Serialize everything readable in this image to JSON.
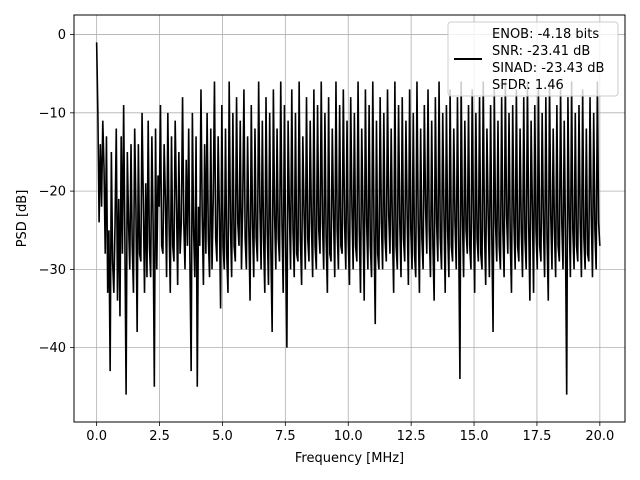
{
  "chart_data": {
    "type": "line",
    "title": "",
    "xlabel": "Frequency [MHz]",
    "ylabel": "PSD [dB]",
    "xlim": [
      -0.9,
      21.0
    ],
    "ylim": [
      -49.5,
      2.5
    ],
    "xticks": [
      0.0,
      2.5,
      5.0,
      7.5,
      10.0,
      12.5,
      15.0,
      17.5,
      20.0
    ],
    "xtick_labels": [
      "0.0",
      "2.5",
      "5.0",
      "7.5",
      "10.0",
      "12.5",
      "15.0",
      "17.5",
      "20.0"
    ],
    "yticks": [
      0,
      -10,
      -20,
      -30,
      -40
    ],
    "ytick_labels": [
      "0",
      "−10",
      "−20",
      "−30",
      "−40"
    ],
    "grid": true,
    "legend_position": "top-right",
    "legend": [
      "ENOB: -4.18 bits",
      "SNR: -23.41 dB",
      "SINAD: -23.43 dB",
      "SFDR: 1.46"
    ],
    "series": [
      {
        "color": "#000000",
        "x_start": 0.0,
        "x_end": 20.0,
        "values": [
          -1,
          -10,
          -24,
          -14,
          -22,
          -11,
          -17,
          -28,
          -13,
          -33,
          -25,
          -43,
          -15,
          -29,
          -33,
          -24,
          -12,
          -34,
          -21,
          -36,
          -13,
          -28,
          -9,
          -26,
          -46,
          -15,
          -24,
          -30,
          -14,
          -27,
          -33,
          -12,
          -22,
          -38,
          -14,
          -28,
          -29,
          -10,
          -21,
          -33,
          -19,
          -31,
          -11,
          -27,
          -31,
          -13,
          -24,
          -45,
          -12,
          -30,
          -18,
          -22,
          -9,
          -27,
          -28,
          -14,
          -21,
          -31,
          -10,
          -24,
          -33,
          -13,
          -27,
          -29,
          -11,
          -21,
          -32,
          -15,
          -28,
          -24,
          -8,
          -24,
          -30,
          -16,
          -27,
          -12,
          -29,
          -43,
          -10,
          -25,
          -31,
          -13,
          -45,
          -22,
          -27,
          -7,
          -23,
          -32,
          -14,
          -28,
          -10,
          -26,
          -31,
          -12,
          -30,
          -21,
          -6,
          -26,
          -29,
          -13,
          -23,
          -35,
          -9,
          -27,
          -30,
          -12,
          -28,
          -33,
          -6,
          -24,
          -31,
          -10,
          -27,
          -29,
          -8,
          -24,
          -27,
          -11,
          -30,
          -22,
          -7,
          -26,
          -30,
          -13,
          -25,
          -34,
          -9,
          -24,
          -31,
          -12,
          -26,
          -29,
          -6,
          -22,
          -30,
          -11,
          -26,
          -33,
          -8,
          -25,
          -32,
          -10,
          -28,
          -38,
          -7,
          -23,
          -30,
          -12,
          -26,
          -29,
          -6,
          -24,
          -33,
          -9,
          -27,
          -40,
          -11,
          -22,
          -30,
          -7,
          -25,
          -31,
          -10,
          -28,
          -29,
          -6,
          -26,
          -32,
          -13,
          -23,
          -30,
          -8,
          -26,
          -29,
          -11,
          -24,
          -31,
          -7,
          -27,
          -30,
          -9,
          -25,
          -28,
          -6,
          -24,
          -30,
          -10,
          -26,
          -33,
          -8,
          -28,
          -29,
          -12,
          -23,
          -31,
          -6,
          -25,
          -30,
          -9,
          -27,
          -28,
          -7,
          -24,
          -30,
          -11,
          -26,
          -32,
          -8,
          -22,
          -30,
          -10,
          -27,
          -29,
          -6,
          -25,
          -33,
          -12,
          -23,
          -34,
          -7,
          -24,
          -30,
          -9,
          -27,
          -31,
          -6,
          -25,
          -37,
          -11,
          -28,
          -30,
          -8,
          -24,
          -30,
          -10,
          -26,
          -29,
          -7,
          -23,
          -28,
          -12,
          -25,
          -33,
          -6,
          -27,
          -30,
          -9,
          -24,
          -31,
          -8,
          -26,
          -29,
          -11,
          -23,
          -32,
          -7,
          -25,
          -30,
          -10,
          -28,
          -31,
          -6,
          -24,
          -33,
          -12,
          -26,
          -30,
          -9,
          -22,
          -28,
          -7,
          -25,
          -31,
          -11,
          -27,
          -34,
          -8,
          -24,
          -29,
          -6,
          -26,
          -30,
          -10,
          -23,
          -33,
          -9,
          -25,
          -31,
          -7,
          -27,
          -29,
          -12,
          -24,
          -30,
          -8,
          -26,
          -44,
          -6,
          -23,
          -31,
          -11,
          -25,
          -28,
          -9,
          -27,
          -30,
          -7,
          -24,
          -33,
          -10,
          -26,
          -29,
          -8,
          -28,
          -30,
          -6,
          -25,
          -32,
          -12,
          -23,
          -31,
          -9,
          -26,
          -38,
          -7,
          -24,
          -29,
          -11,
          -27,
          -30,
          -8,
          -25,
          -31,
          -6,
          -23,
          -28,
          -10,
          -26,
          -33,
          -9,
          -24,
          -30,
          -7,
          -27,
          -29,
          -12,
          -25,
          -31,
          -8,
          -26,
          -30,
          -6,
          -24,
          -34,
          -11,
          -22,
          -33,
          -9,
          -25,
          -30,
          -7,
          -27,
          -29,
          -10,
          -24,
          -31,
          -8,
          -26,
          -34,
          -6,
          -23,
          -30,
          -12,
          -25,
          -31,
          -9,
          -27,
          -29,
          -7,
          -24,
          -30,
          -11,
          -26,
          -46,
          -8,
          -23,
          -31,
          -6,
          -25,
          -30,
          -10,
          -27,
          -29,
          -9,
          -24,
          -31,
          -7,
          -26,
          -30,
          -12,
          -28,
          -29,
          -8,
          -23,
          -31,
          -10,
          -25,
          -30,
          -6,
          -24,
          -27
        ]
      }
    ]
  }
}
